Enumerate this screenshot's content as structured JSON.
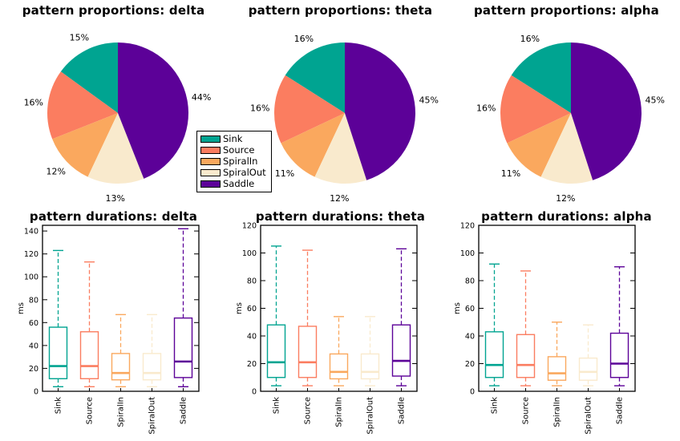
{
  "figure": {
    "background": "#ffffff"
  },
  "palette": {
    "sink": "#00A491",
    "source": "#FB7D60",
    "spiral_in": "#FAA85E",
    "spiral_out": "#F9EACD",
    "saddle": "#5C0198"
  },
  "legend": {
    "items": [
      {
        "label": "Sink",
        "color": "#00A491"
      },
      {
        "label": "Source",
        "color": "#FB7D60"
      },
      {
        "label": "SpiralIn",
        "color": "#FAA85E"
      },
      {
        "label": "SpiralOut",
        "color": "#F9EACD"
      },
      {
        "label": "Saddle",
        "color": "#5C0198"
      }
    ]
  },
  "chart_data": [
    {
      "id": "pie-delta",
      "type": "pie",
      "title": "pattern proportions: delta",
      "categories": [
        "Sink",
        "Source",
        "SpiralIn",
        "SpiralOut",
        "Saddle"
      ],
      "values": [
        15,
        16,
        12,
        13,
        44
      ],
      "labels": [
        "15%",
        "16%",
        "12%",
        "13%",
        "44%"
      ],
      "colors": [
        "#00A491",
        "#FB7D60",
        "#FAA85E",
        "#F9EACD",
        "#5C0198"
      ]
    },
    {
      "id": "pie-theta",
      "type": "pie",
      "title": "pattern proportions: theta",
      "categories": [
        "Sink",
        "Source",
        "SpiralIn",
        "SpiralOut",
        "Saddle"
      ],
      "values": [
        16,
        16,
        11,
        12,
        45
      ],
      "labels": [
        "16%",
        "16%",
        "11%",
        "12%",
        "45%"
      ],
      "colors": [
        "#00A491",
        "#FB7D60",
        "#FAA85E",
        "#F9EACD",
        "#5C0198"
      ]
    },
    {
      "id": "pie-alpha",
      "type": "pie",
      "title": "pattern proportions: alpha",
      "categories": [
        "Sink",
        "Source",
        "SpiralIn",
        "SpiralOut",
        "Saddle"
      ],
      "values": [
        16,
        16,
        11,
        12,
        45
      ],
      "labels": [
        "16%",
        "16%",
        "11%",
        "12%",
        "45%"
      ],
      "colors": [
        "#00A491",
        "#FB7D60",
        "#FAA85E",
        "#F9EACD",
        "#5C0198"
      ]
    },
    {
      "id": "box-delta",
      "type": "box",
      "title": "pattern durations: delta",
      "ylabel": "ms",
      "ylim": [
        0,
        145
      ],
      "yticks": [
        0,
        20,
        40,
        60,
        80,
        100,
        120,
        140
      ],
      "categories": [
        "Sink",
        "Source",
        "SpiralIn",
        "SpiralOut",
        "Saddle"
      ],
      "series": [
        {
          "name": "Sink",
          "color": "#00A491",
          "whislo": 4,
          "q1": 11,
          "med": 22,
          "q3": 56,
          "whishi": 123
        },
        {
          "name": "Source",
          "color": "#FB7D60",
          "whislo": 4,
          "q1": 11,
          "med": 22,
          "q3": 52,
          "whishi": 113
        },
        {
          "name": "SpiralIn",
          "color": "#FAA85E",
          "whislo": 4,
          "q1": 10,
          "med": 16,
          "q3": 33,
          "whishi": 67
        },
        {
          "name": "SpiralOut",
          "color": "#F9EACD",
          "whislo": 4,
          "q1": 10,
          "med": 16,
          "q3": 33,
          "whishi": 67
        },
        {
          "name": "Saddle",
          "color": "#5C0198",
          "whislo": 4,
          "q1": 12,
          "med": 26,
          "q3": 64,
          "whishi": 142
        }
      ]
    },
    {
      "id": "box-theta",
      "type": "box",
      "title": "pattern durations: theta",
      "ylabel": "ms",
      "ylim": [
        0,
        120
      ],
      "yticks": [
        0,
        20,
        40,
        60,
        80,
        100,
        120
      ],
      "categories": [
        "Sink",
        "Source",
        "SpiralIn",
        "SpiralOut",
        "Saddle"
      ],
      "series": [
        {
          "name": "Sink",
          "color": "#00A491",
          "whislo": 4,
          "q1": 10,
          "med": 21,
          "q3": 48,
          "whishi": 105
        },
        {
          "name": "Source",
          "color": "#FB7D60",
          "whislo": 4,
          "q1": 10,
          "med": 21,
          "q3": 47,
          "whishi": 102
        },
        {
          "name": "SpiralIn",
          "color": "#FAA85E",
          "whislo": 4,
          "q1": 9,
          "med": 14,
          "q3": 27,
          "whishi": 54
        },
        {
          "name": "SpiralOut",
          "color": "#F9EACD",
          "whislo": 4,
          "q1": 9,
          "med": 14,
          "q3": 27,
          "whishi": 54
        },
        {
          "name": "Saddle",
          "color": "#5C0198",
          "whislo": 4,
          "q1": 11,
          "med": 22,
          "q3": 48,
          "whishi": 103
        }
      ]
    },
    {
      "id": "box-alpha",
      "type": "box",
      "title": "pattern durations: alpha",
      "ylabel": "ms",
      "ylim": [
        0,
        120
      ],
      "yticks": [
        0,
        20,
        40,
        60,
        80,
        100,
        120
      ],
      "categories": [
        "Sink",
        "Source",
        "SpiralIn",
        "SpiralOut",
        "Saddle"
      ],
      "series": [
        {
          "name": "Sink",
          "color": "#00A491",
          "whislo": 4,
          "q1": 10,
          "med": 19,
          "q3": 43,
          "whishi": 92
        },
        {
          "name": "Source",
          "color": "#FB7D60",
          "whislo": 4,
          "q1": 10,
          "med": 19,
          "q3": 41,
          "whishi": 87
        },
        {
          "name": "SpiralIn",
          "color": "#FAA85E",
          "whislo": 4,
          "q1": 8,
          "med": 13,
          "q3": 25,
          "whishi": 50
        },
        {
          "name": "SpiralOut",
          "color": "#F9EACD",
          "whislo": 4,
          "q1": 8,
          "med": 14,
          "q3": 24,
          "whishi": 48
        },
        {
          "name": "Saddle",
          "color": "#5C0198",
          "whislo": 4,
          "q1": 10,
          "med": 20,
          "q3": 42,
          "whishi": 90
        }
      ]
    }
  ]
}
